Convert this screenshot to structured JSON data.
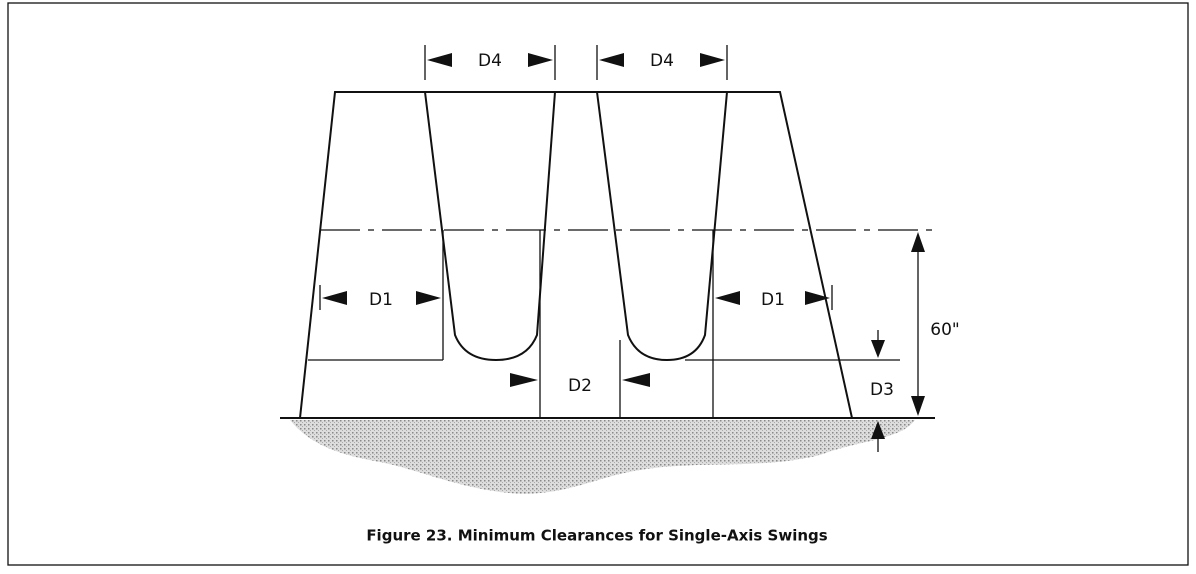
{
  "figure": {
    "caption": "Figure 23. Minimum Clearances for Single-Axis Swings",
    "labels": [
      "D4",
      "D4",
      "D1",
      "D1",
      "D2",
      "D3",
      "60\""
    ]
  }
}
